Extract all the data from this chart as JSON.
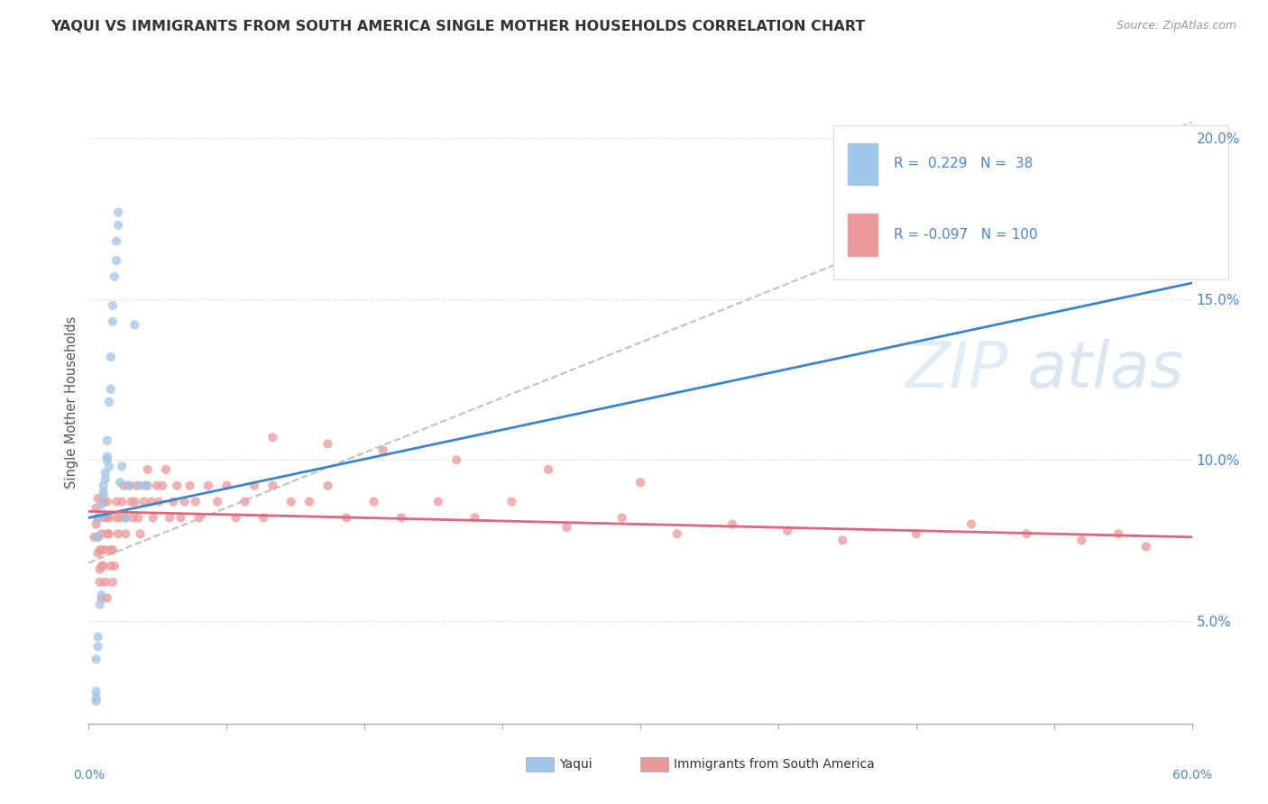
{
  "title": "YAQUI VS IMMIGRANTS FROM SOUTH AMERICA SINGLE MOTHER HOUSEHOLDS CORRELATION CHART",
  "source": "Source: ZipAtlas.com",
  "ylabel": "Single Mother Households",
  "x_lim": [
    0.0,
    0.6
  ],
  "y_lim": [
    0.018,
    0.218
  ],
  "y_ticks": [
    0.05,
    0.1,
    0.15,
    0.2
  ],
  "y_tick_labels": [
    "5.0%",
    "10.0%",
    "15.0%",
    "20.0%"
  ],
  "blue_scatter_color": "#9fc5e8",
  "pink_scatter_color": "#ea9999",
  "blue_line_color": "#3d85c8",
  "pink_line_color": "#e06680",
  "dash_line_color": "#c0c0c0",
  "grid_color": "#e8e8e8",
  "tick_color": "#4a86c8",
  "watermark_color": "#c9dff0",
  "legend_text_color": "#4a86c8",
  "title_color": "#333333",
  "source_color": "#999999",
  "ylabel_color": "#555555",
  "blue_line_start_y": 0.082,
  "blue_line_end_y": 0.155,
  "pink_line_start_y": 0.084,
  "pink_line_end_y": 0.076,
  "dash_line_start_y": 0.068,
  "dash_line_end_y": 0.205,
  "yaqui_x": [
    0.005,
    0.005,
    0.007,
    0.007,
    0.008,
    0.008,
    0.008,
    0.009,
    0.009,
    0.01,
    0.01,
    0.01,
    0.011,
    0.011,
    0.012,
    0.012,
    0.013,
    0.013,
    0.014,
    0.015,
    0.015,
    0.016,
    0.016,
    0.017,
    0.018,
    0.02,
    0.022,
    0.025,
    0.028,
    0.032,
    0.004,
    0.005,
    0.005,
    0.004,
    0.006,
    0.007,
    0.004,
    0.004
  ],
  "yaqui_y": [
    0.076,
    0.082,
    0.083,
    0.086,
    0.089,
    0.09,
    0.092,
    0.094,
    0.096,
    0.1,
    0.106,
    0.101,
    0.098,
    0.118,
    0.122,
    0.132,
    0.143,
    0.148,
    0.157,
    0.162,
    0.168,
    0.173,
    0.177,
    0.093,
    0.098,
    0.082,
    0.092,
    0.142,
    0.092,
    0.092,
    0.038,
    0.042,
    0.045,
    0.028,
    0.055,
    0.058,
    0.025,
    0.026
  ],
  "sa_x": [
    0.003,
    0.004,
    0.004,
    0.005,
    0.005,
    0.005,
    0.005,
    0.006,
    0.006,
    0.006,
    0.007,
    0.007,
    0.007,
    0.007,
    0.008,
    0.008,
    0.008,
    0.009,
    0.009,
    0.01,
    0.01,
    0.01,
    0.01,
    0.011,
    0.011,
    0.012,
    0.012,
    0.013,
    0.013,
    0.014,
    0.015,
    0.015,
    0.016,
    0.017,
    0.018,
    0.019,
    0.02,
    0.02,
    0.022,
    0.023,
    0.024,
    0.025,
    0.026,
    0.027,
    0.028,
    0.03,
    0.031,
    0.032,
    0.034,
    0.035,
    0.037,
    0.038,
    0.04,
    0.042,
    0.044,
    0.046,
    0.048,
    0.05,
    0.052,
    0.055,
    0.058,
    0.06,
    0.065,
    0.07,
    0.075,
    0.08,
    0.085,
    0.09,
    0.095,
    0.1,
    0.11,
    0.12,
    0.13,
    0.14,
    0.155,
    0.17,
    0.19,
    0.21,
    0.23,
    0.26,
    0.29,
    0.32,
    0.35,
    0.38,
    0.41,
    0.45,
    0.48,
    0.51,
    0.54,
    0.56,
    0.575,
    0.1,
    0.13,
    0.16,
    0.2,
    0.25,
    0.3
  ],
  "sa_y": [
    0.076,
    0.08,
    0.085,
    0.088,
    0.076,
    0.082,
    0.071,
    0.066,
    0.062,
    0.072,
    0.057,
    0.067,
    0.072,
    0.077,
    0.082,
    0.087,
    0.067,
    0.072,
    0.062,
    0.057,
    0.077,
    0.082,
    0.087,
    0.082,
    0.077,
    0.072,
    0.067,
    0.062,
    0.072,
    0.067,
    0.087,
    0.082,
    0.077,
    0.082,
    0.087,
    0.092,
    0.082,
    0.077,
    0.092,
    0.087,
    0.082,
    0.087,
    0.092,
    0.082,
    0.077,
    0.087,
    0.092,
    0.097,
    0.087,
    0.082,
    0.092,
    0.087,
    0.092,
    0.097,
    0.082,
    0.087,
    0.092,
    0.082,
    0.087,
    0.092,
    0.087,
    0.082,
    0.092,
    0.087,
    0.092,
    0.082,
    0.087,
    0.092,
    0.082,
    0.092,
    0.087,
    0.087,
    0.092,
    0.082,
    0.087,
    0.082,
    0.087,
    0.082,
    0.087,
    0.079,
    0.082,
    0.077,
    0.08,
    0.078,
    0.075,
    0.077,
    0.08,
    0.077,
    0.075,
    0.077,
    0.073,
    0.107,
    0.105,
    0.103,
    0.1,
    0.097,
    0.093
  ]
}
